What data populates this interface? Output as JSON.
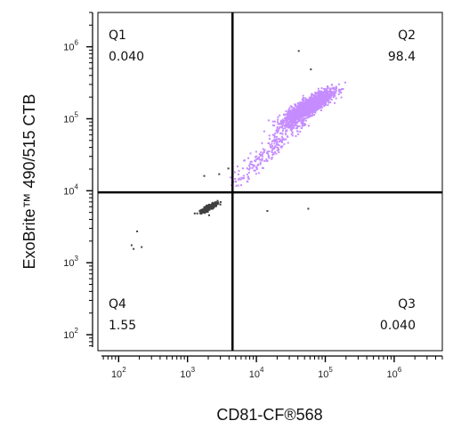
{
  "chart_data": {
    "type": "scatter",
    "plot_kind": "flow-cytometry quadrant dot plot",
    "xlabel": "CD81-CF®568",
    "ylabel": "ExoBrite™ 490/515 CTB",
    "x_scale": "log",
    "y_scale": "log",
    "xlim": [
      50,
      5000000
    ],
    "ylim": [
      60,
      3000000
    ],
    "x_ticks": [
      {
        "value": 100,
        "label": "10",
        "exp": "2"
      },
      {
        "value": 1000,
        "label": "10",
        "exp": "3"
      },
      {
        "value": 10000,
        "label": "10",
        "exp": "4"
      },
      {
        "value": 100000,
        "label": "10",
        "exp": "5"
      },
      {
        "value": 1000000,
        "label": "10",
        "exp": "6"
      }
    ],
    "y_ticks": [
      {
        "value": 100,
        "label": "10",
        "exp": "2"
      },
      {
        "value": 1000,
        "label": "10",
        "exp": "3"
      },
      {
        "value": 10000,
        "label": "10",
        "exp": "4"
      },
      {
        "value": 100000,
        "label": "10",
        "exp": "5"
      },
      {
        "value": 1000000,
        "label": "10",
        "exp": "6"
      }
    ],
    "gates": {
      "x_threshold": 4500,
      "y_threshold": 9500
    },
    "quadrants": [
      {
        "name": "Q1",
        "value": "0.040",
        "position": "top-left"
      },
      {
        "name": "Q2",
        "value": "98.4",
        "position": "top-right"
      },
      {
        "name": "Q3",
        "value": "0.040",
        "position": "bottom-right"
      },
      {
        "name": "Q4",
        "value": "1.55",
        "position": "bottom-left"
      }
    ],
    "populations": [
      {
        "id": "dim",
        "color": "#404040",
        "center": [
          2000,
          6000
        ],
        "log_spread": [
          0.06,
          0.035
        ],
        "count": 260
      },
      {
        "id": "bright",
        "color": "#c58cff",
        "center": [
          55000,
          150000
        ],
        "log_spread": [
          0.17,
          0.11
        ],
        "count": 1700
      },
      {
        "id": "trail",
        "color": "#c58cff",
        "from": [
          4500,
          12000
        ],
        "to": [
          45000,
          110000
        ],
        "count": 260
      },
      {
        "id": "sparse",
        "color": "#444444",
        "points": [
          [
            180,
            2800
          ],
          [
            150,
            1800
          ],
          [
            160,
            1600
          ],
          [
            210,
            1700
          ],
          [
            1700,
            16500
          ],
          [
            2800,
            17500
          ],
          [
            3800,
            21000
          ],
          [
            2000,
            4700
          ],
          [
            55000,
            5800
          ],
          [
            14000,
            5400
          ],
          [
            40000,
            900000
          ],
          [
            60000,
            500000
          ]
        ]
      }
    ],
    "grid": false
  }
}
